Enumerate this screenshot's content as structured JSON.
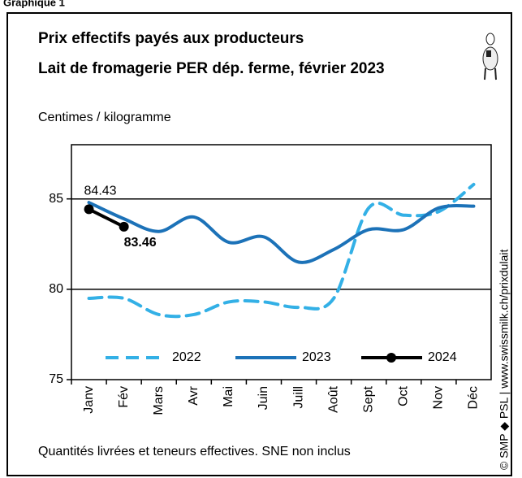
{
  "chart_data": {
    "type": "line",
    "heading": "Graphique 1",
    "title": [
      "Prix effectifs payés aux producteurs",
      "Lait de fromagerie PER dép. ferme, février 2023"
    ],
    "ylabel": "Centimes / kilogramme",
    "footnote": "Quantités livrées et teneurs effectives. SNE non inclus",
    "source": "© SMP ◆ PSL | www.swissmilk.ch/prixdulait",
    "categories": [
      "Janv",
      "Fév",
      "Mars",
      "Avr",
      "Mai",
      "Juin",
      "Juill",
      "Août",
      "Sept",
      "Oct",
      "Nov",
      "Déc"
    ],
    "ylim": [
      75,
      88
    ],
    "yticks": [
      75,
      80,
      85
    ],
    "grid": true,
    "legend": "bottom",
    "series": [
      {
        "name": "2022",
        "color": "#33b0e6",
        "style": "dashed",
        "values": [
          79.5,
          79.5,
          78.6,
          78.6,
          79.3,
          79.3,
          79.0,
          79.5,
          84.5,
          84.1,
          84.3,
          85.8
        ]
      },
      {
        "name": "2023",
        "color": "#1c72b8",
        "style": "solid",
        "values": [
          84.8,
          83.9,
          83.2,
          84.0,
          82.6,
          82.9,
          81.5,
          82.2,
          83.3,
          83.3,
          84.5,
          84.6
        ]
      },
      {
        "name": "2024",
        "color": "#000000",
        "style": "solid",
        "markers": true,
        "data_labels": true,
        "values": [
          84.43,
          83.46,
          null,
          null,
          null,
          null,
          null,
          null,
          null,
          null,
          null,
          null
        ]
      }
    ]
  }
}
